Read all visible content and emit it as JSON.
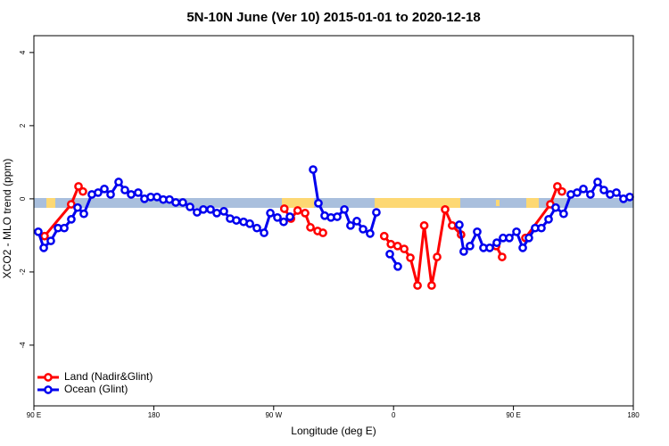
{
  "chart_data": {
    "type": "line",
    "title": "5N-10N June (Ver 10)   2015-01-01 to 2020-12-18",
    "x_label": "Longitude (deg E)",
    "y_label": "XCO2 - MLO trend (ppm)",
    "xlim": [
      90,
      540
    ],
    "ylim": [
      -5.66,
      4.46
    ],
    "xticks": [
      {
        "value": 90,
        "label": "90 E"
      },
      {
        "value": 180,
        "label": "180"
      },
      {
        "value": 270,
        "label": "90 W"
      },
      {
        "value": 360,
        "label": "0"
      },
      {
        "value": 450,
        "label": "90 E"
      },
      {
        "value": 540,
        "label": "180"
      }
    ],
    "yticks": [
      4,
      2,
      0,
      -2,
      -4
    ],
    "legend": "bottomleft",
    "series": [
      {
        "name": "Land (Nadir&Glint)",
        "color": "#ff0000",
        "x": [
          98,
          118,
          123.5,
          126.8,
          null,
          278,
          283,
          288,
          293.6,
          297.6,
          303,
          307,
          null,
          353,
          358,
          363,
          368,
          372.6,
          378,
          383,
          388.6,
          392.7,
          398.7,
          404,
          410.7,
          null,
          437,
          441.5,
          null,
          459,
          477.7,
          483,
          486.4
        ],
        "values": [
          -1.02,
          -0.15,
          0.34,
          0.2,
          null,
          -0.27,
          -0.54,
          -0.32,
          -0.39,
          -0.78,
          -0.88,
          -0.93,
          null,
          -1.02,
          -1.24,
          -1.29,
          -1.37,
          -1.61,
          -2.37,
          -0.73,
          -2.37,
          -1.59,
          -0.29,
          -0.73,
          -0.98,
          null,
          -1.29,
          -1.59,
          null,
          -1.07,
          -0.15,
          0.34,
          0.2
        ]
      },
      {
        "name": "Ocean (Glint)",
        "color": "#0000ee",
        "x": [
          93.3,
          97.4,
          102.7,
          108.1,
          112.8,
          118.1,
          122.8,
          127.5,
          133.5,
          138.2,
          142.9,
          147.6,
          153.6,
          158.3,
          163,
          168.3,
          173,
          177.7,
          182.4,
          187.1,
          191.8,
          196.5,
          201.8,
          207.2,
          212.5,
          217.2,
          222.6,
          227.3,
          232.6,
          237.3,
          242,
          247.4,
          252.1,
          257.4,
          262.8,
          267.5,
          272.8,
          277.5,
          282.2,
          null,
          299.6,
          303.6,
          308.3,
          313,
          317.7,
          323.1,
          327.7,
          332.4,
          337.1,
          342.4,
          347.1,
          null,
          357.2,
          363.2,
          null,
          409.4,
          412.7,
          417.4,
          422.8,
          427.5,
          432.2,
          437.5,
          442.2,
          446.9,
          452.3,
          457,
          461.6,
          466.3,
          471,
          476.4,
          481.7,
          487.7,
          493.1,
          497.8,
          502.5,
          507.8,
          513.2,
          517.9,
          522.6,
          527.3,
          532.6,
          537.3
        ],
        "values": [
          -0.9,
          -1.34,
          -1.15,
          -0.8,
          -0.8,
          -0.56,
          -0.24,
          -0.41,
          0.12,
          0.17,
          0.27,
          0.12,
          0.46,
          0.24,
          0.12,
          0.17,
          0,
          0.05,
          0.05,
          -0.02,
          -0.02,
          -0.1,
          -0.1,
          -0.22,
          -0.37,
          -0.29,
          -0.29,
          -0.39,
          -0.34,
          -0.54,
          -0.59,
          -0.63,
          -0.68,
          -0.8,
          -0.93,
          -0.39,
          -0.51,
          -0.63,
          -0.49,
          null,
          0.8,
          -0.12,
          -0.46,
          -0.51,
          -0.49,
          -0.29,
          -0.73,
          -0.61,
          -0.83,
          -0.95,
          -0.37,
          null,
          -1.51,
          -1.85,
          null,
          -0.71,
          -1.44,
          -1.29,
          -0.9,
          -1.34,
          -1.34,
          -1.2,
          -1.07,
          -1.07,
          -0.9,
          -1.34,
          -1.07,
          -0.8,
          -0.8,
          -0.56,
          -0.24,
          -0.41,
          0.12,
          0.17,
          0.27,
          0.12,
          0.46,
          0.24,
          0.12,
          0.17,
          0,
          0.05
        ]
      }
    ]
  }
}
